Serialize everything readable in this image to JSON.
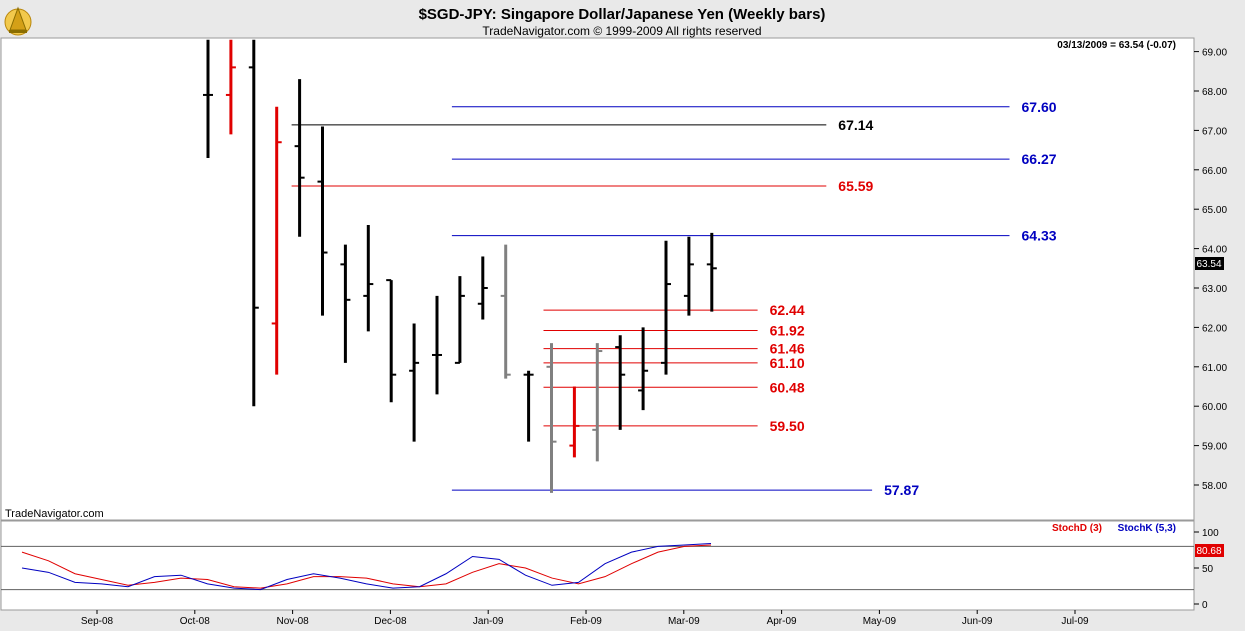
{
  "header": {
    "title": "$SGD-JPY:  Singapore Dollar/Japanese Yen  (Weekly bars)",
    "copyright": "TradeNavigator.com © 1999-2009 All rights reserved",
    "quote": "03/13/2009 = 63.54 (-0.07)",
    "watermark": "TradeNavigator.com"
  },
  "colors": {
    "up": "#000000",
    "down": "#e00000",
    "gray": "#808080",
    "fib_blue": "#0000c0",
    "fib_red": "#e00000",
    "stochd": "#e00000",
    "stochk": "#0000c0"
  },
  "chart_data": [
    {
      "type": "ohlc",
      "price_axis": {
        "min": 58,
        "max": 69,
        "ticks": [
          "58.00",
          "59.00",
          "60.00",
          "61.00",
          "62.00",
          "63.00",
          "64.00",
          "65.00",
          "66.00",
          "67.00",
          "68.00",
          "69.00"
        ]
      },
      "last_price_label": "63.54",
      "x_axis": {
        "labels": [
          "Sep-08",
          "Oct-08",
          "Nov-08",
          "Dec-08",
          "Jan-09",
          "Feb-09",
          "Mar-09",
          "Apr-09",
          "May-09",
          "Jun-09",
          "Jul-09"
        ]
      },
      "bars": [
        {
          "date": "2008-09-26",
          "high": 69.3,
          "low": 66.3,
          "open": 67.9,
          "close": 67.9,
          "color": "black"
        },
        {
          "date": "2008-10-03",
          "high": 69.3,
          "low": 66.9,
          "open": 67.9,
          "close": 68.6,
          "color": "red"
        },
        {
          "date": "2008-10-10",
          "high": 69.3,
          "low": 60.0,
          "open": 68.6,
          "close": 62.5,
          "color": "black"
        },
        {
          "date": "2008-10-17",
          "high": 67.6,
          "low": 60.8,
          "open": 62.1,
          "close": 66.7,
          "color": "red"
        },
        {
          "date": "2008-10-24",
          "high": 68.3,
          "low": 64.3,
          "open": 66.6,
          "close": 65.8,
          "color": "black"
        },
        {
          "date": "2008-10-31",
          "high": 67.1,
          "low": 62.3,
          "open": 65.7,
          "close": 63.9,
          "color": "black"
        },
        {
          "date": "2008-11-07",
          "high": 64.1,
          "low": 61.1,
          "open": 63.6,
          "close": 62.7,
          "color": "black"
        },
        {
          "date": "2008-11-14",
          "high": 64.6,
          "low": 61.9,
          "open": 62.8,
          "close": 63.1,
          "color": "black"
        },
        {
          "date": "2008-11-21",
          "high": 63.2,
          "low": 60.1,
          "open": 63.2,
          "close": 60.8,
          "color": "black"
        },
        {
          "date": "2008-11-28",
          "high": 62.1,
          "low": 59.1,
          "open": 60.9,
          "close": 61.1,
          "color": "black"
        },
        {
          "date": "2008-12-05",
          "high": 62.8,
          "low": 60.3,
          "open": 61.3,
          "close": 61.3,
          "color": "black"
        },
        {
          "date": "2008-12-12",
          "high": 63.3,
          "low": 61.1,
          "open": 61.1,
          "close": 62.8,
          "color": "black"
        },
        {
          "date": "2008-12-19",
          "high": 63.8,
          "low": 62.2,
          "open": 62.6,
          "close": 63.0,
          "color": "black"
        },
        {
          "date": "2008-12-26",
          "high": 64.1,
          "low": 60.7,
          "open": 62.8,
          "close": 60.8,
          "color": "gray"
        },
        {
          "date": "2009-01-02",
          "high": 60.9,
          "low": 59.1,
          "open": 60.8,
          "close": 60.8,
          "color": "black"
        },
        {
          "date": "2009-01-09",
          "high": 61.6,
          "low": 57.8,
          "open": 61.0,
          "close": 59.1,
          "color": "gray"
        },
        {
          "date": "2009-01-16",
          "high": 60.5,
          "low": 58.7,
          "open": 59.0,
          "close": 59.5,
          "color": "red"
        },
        {
          "date": "2009-01-23",
          "high": 61.6,
          "low": 58.6,
          "open": 59.4,
          "close": 61.4,
          "color": "gray"
        },
        {
          "date": "2009-01-30",
          "high": 61.8,
          "low": 59.4,
          "open": 61.5,
          "close": 60.8,
          "color": "black"
        },
        {
          "date": "2009-02-06",
          "high": 62.0,
          "low": 59.9,
          "open": 60.4,
          "close": 60.9,
          "color": "black"
        },
        {
          "date": "2009-02-13",
          "high": 64.2,
          "low": 60.8,
          "open": 61.1,
          "close": 63.1,
          "color": "black"
        },
        {
          "date": "2009-02-20",
          "high": 64.3,
          "low": 62.3,
          "open": 62.8,
          "close": 63.6,
          "color": "black"
        },
        {
          "date": "2009-02-27",
          "high": 64.4,
          "low": 62.4,
          "open": 63.6,
          "close": 63.5,
          "color": "black"
        }
      ],
      "levels": [
        {
          "value": 67.6,
          "label": "67.60",
          "color": "blue",
          "from_bar": 11,
          "to_bar": 35
        },
        {
          "value": 67.14,
          "label": "67.14",
          "color": "black",
          "from_bar": 4,
          "to_bar": 27
        },
        {
          "value": 66.27,
          "label": "66.27",
          "color": "blue",
          "from_bar": 11,
          "to_bar": 35
        },
        {
          "value": 65.59,
          "label": "65.59",
          "color": "red",
          "from_bar": 4,
          "to_bar": 27
        },
        {
          "value": 64.33,
          "label": "64.33",
          "color": "blue",
          "from_bar": 11,
          "to_bar": 35
        },
        {
          "value": 62.44,
          "label": "62.44",
          "color": "red",
          "from_bar": 15,
          "to_bar": 24
        },
        {
          "value": 61.92,
          "label": "61.92",
          "color": "red",
          "from_bar": 15,
          "to_bar": 24
        },
        {
          "value": 61.46,
          "label": "61.46",
          "color": "red",
          "from_bar": 15,
          "to_bar": 24
        },
        {
          "value": 61.1,
          "label": "61.10",
          "color": "red",
          "from_bar": 15,
          "to_bar": 24
        },
        {
          "value": 60.48,
          "label": "60.48",
          "color": "red",
          "from_bar": 15,
          "to_bar": 24
        },
        {
          "value": 59.5,
          "label": "59.50",
          "color": "red",
          "from_bar": 15,
          "to_bar": 24
        },
        {
          "value": 57.87,
          "label": "57.87",
          "color": "blue",
          "from_bar": 11,
          "to_bar": 29
        }
      ]
    },
    {
      "type": "line",
      "legend": [
        "StochD (3)",
        "StochK (5,3)"
      ],
      "y_axis": {
        "min": 0,
        "max": 100,
        "ticks": [
          "0",
          "50",
          "100"
        ]
      },
      "last_value_label": "80.68",
      "series": [
        {
          "name": "StochD (3)",
          "color": "red",
          "values": [
            72,
            60,
            42,
            34,
            26,
            30,
            36,
            34,
            24,
            22,
            28,
            38,
            38,
            36,
            28,
            24,
            28,
            44,
            56,
            50,
            36,
            28,
            38,
            56,
            72,
            80,
            82
          ]
        },
        {
          "name": "StochK (5,3)",
          "color": "blue",
          "values": [
            50,
            44,
            30,
            28,
            24,
            38,
            40,
            28,
            22,
            20,
            34,
            42,
            36,
            28,
            22,
            24,
            42,
            66,
            62,
            40,
            26,
            30,
            56,
            72,
            80,
            82,
            84
          ]
        }
      ]
    }
  ]
}
